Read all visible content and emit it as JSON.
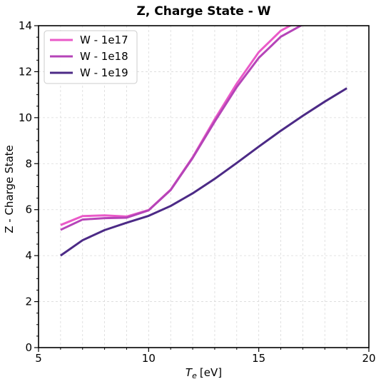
{
  "chart_data": {
    "type": "line",
    "title": "Z, Charge State - W",
    "xlabel_main": "T",
    "xlabel_sub": "e",
    "xlabel_unit": "[eV]",
    "ylabel": "Z - Charge State",
    "xlim": [
      5,
      20
    ],
    "ylim": [
      0,
      14
    ],
    "xticks": [
      "5",
      "10",
      "15",
      "20"
    ],
    "yticks": [
      "0",
      "2",
      "4",
      "6",
      "8",
      "10",
      "12",
      "14"
    ],
    "grid": true,
    "legend_position": "top-left",
    "series": [
      {
        "name": "W - 1e17",
        "color": "#ea5ac8",
        "x": [
          6,
          7,
          8,
          9,
          10,
          11,
          12,
          13,
          14,
          15,
          16,
          17
        ],
        "y": [
          5.33,
          5.72,
          5.75,
          5.7,
          5.98,
          6.87,
          8.28,
          9.93,
          11.48,
          12.85,
          13.78,
          14.3
        ]
      },
      {
        "name": "W - 1e18",
        "color": "#b544b8",
        "x": [
          6,
          7,
          8,
          9,
          10,
          11,
          12,
          13,
          14,
          15,
          16,
          17
        ],
        "y": [
          5.12,
          5.57,
          5.63,
          5.65,
          5.97,
          6.85,
          8.25,
          9.83,
          11.33,
          12.6,
          13.52,
          14.05
        ]
      },
      {
        "name": "W - 1e19",
        "color": "#4c2a86",
        "x": [
          6,
          7,
          8,
          9,
          10,
          11,
          12,
          13,
          14,
          15,
          16,
          17,
          18,
          19
        ],
        "y": [
          4.0,
          4.67,
          5.11,
          5.43,
          5.73,
          6.16,
          6.71,
          7.34,
          8.03,
          8.74,
          9.43,
          10.08,
          10.7,
          11.28
        ]
      }
    ]
  }
}
